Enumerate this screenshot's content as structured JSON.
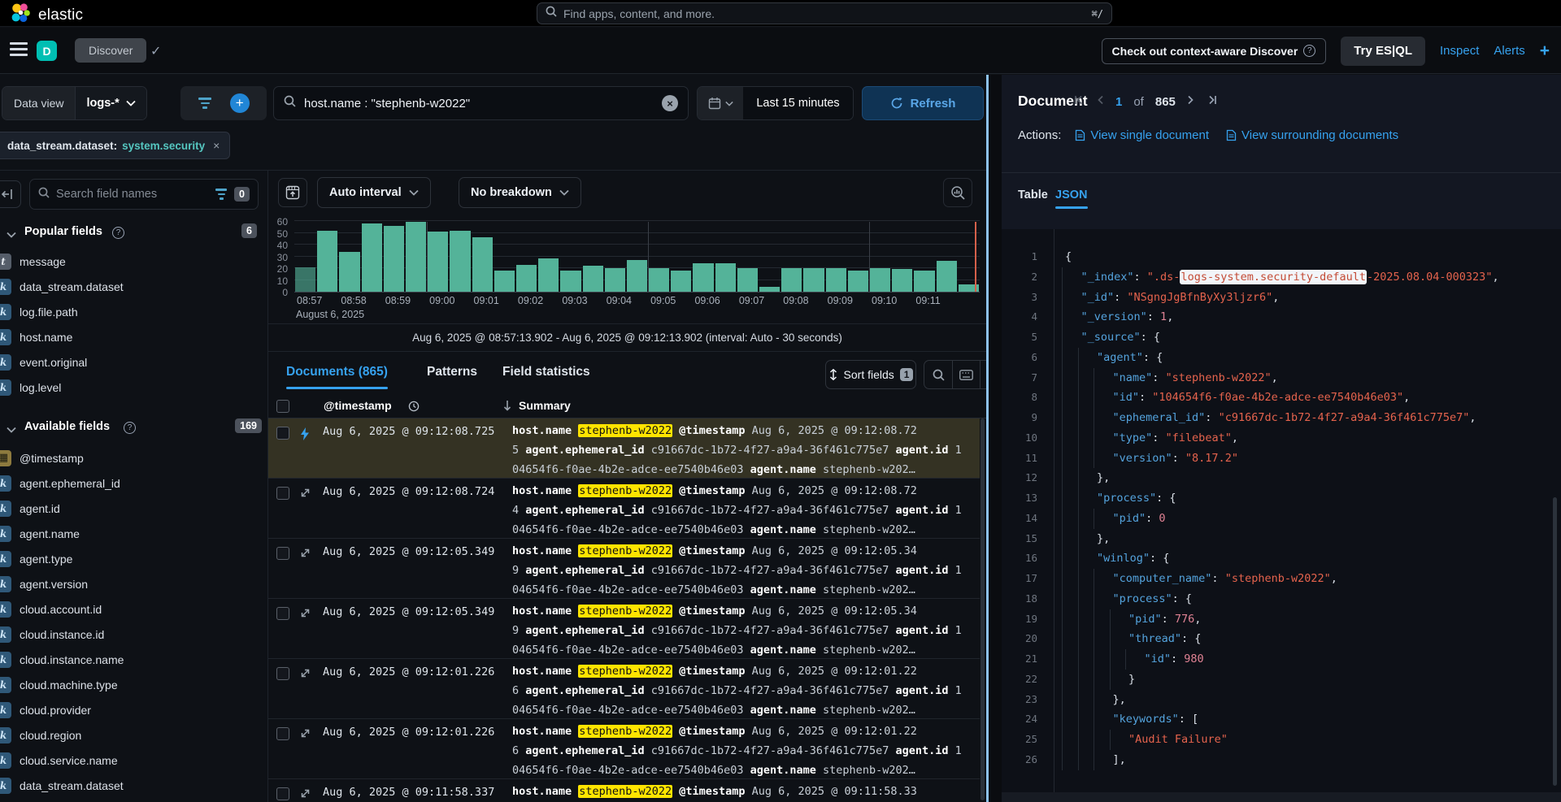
{
  "header": {
    "brand": "elastic",
    "search_placeholder": "Find apps, content, and more.",
    "shortcut": "⌘/"
  },
  "nav": {
    "space_initial": "D",
    "breadcrumb": "Discover",
    "banner": "Check out context-aware Discover",
    "try_esql": "Try ES|QL",
    "inspect": "Inspect",
    "alerts": "Alerts",
    "add": "+"
  },
  "query_bar": {
    "data_view_label": "Data view",
    "data_view_value": "logs-*",
    "query": "host.name : \"stephenb-w2022\"",
    "time_range": "Last 15 minutes",
    "refresh_label": "Refresh"
  },
  "filter_pill": {
    "field": "data_stream.dataset:",
    "value": "system.security",
    "close": "×"
  },
  "sidebar": {
    "search_placeholder": "Search field names",
    "filter_badge": "0",
    "popular": {
      "title": "Popular fields",
      "count": "6",
      "fields": [
        {
          "name": "message",
          "type": "t"
        },
        {
          "name": "data_stream.dataset",
          "type": "k"
        },
        {
          "name": "log.file.path",
          "type": "k"
        },
        {
          "name": "host.name",
          "type": "k"
        },
        {
          "name": "event.original",
          "type": "k"
        },
        {
          "name": "log.level",
          "type": "k"
        }
      ]
    },
    "available": {
      "title": "Available fields",
      "count": "169",
      "fields": [
        {
          "name": "@timestamp",
          "type": "date"
        },
        {
          "name": "agent.ephemeral_id",
          "type": "k"
        },
        {
          "name": "agent.id",
          "type": "k"
        },
        {
          "name": "agent.name",
          "type": "k"
        },
        {
          "name": "agent.type",
          "type": "k"
        },
        {
          "name": "agent.version",
          "type": "k"
        },
        {
          "name": "cloud.account.id",
          "type": "k"
        },
        {
          "name": "cloud.instance.id",
          "type": "k"
        },
        {
          "name": "cloud.instance.name",
          "type": "k"
        },
        {
          "name": "cloud.machine.type",
          "type": "k"
        },
        {
          "name": "cloud.provider",
          "type": "k"
        },
        {
          "name": "cloud.region",
          "type": "k"
        },
        {
          "name": "cloud.service.name",
          "type": "k"
        },
        {
          "name": "data_stream.dataset",
          "type": "k"
        }
      ]
    }
  },
  "chart": {
    "interval_label": "Auto interval",
    "breakdown_label": "No breakdown",
    "date_label": "August 6, 2025",
    "time_summary": "Aug 6, 2025 @ 08:57:13.902 - Aug 6, 2025 @ 09:12:13.902 (interval: Auto - 30 seconds)"
  },
  "chart_data": {
    "type": "bar",
    "x": [
      "08:57:00",
      "08:57:30",
      "08:58:00",
      "08:58:30",
      "08:59:00",
      "08:59:30",
      "09:00:00",
      "09:00:30",
      "09:01:00",
      "09:01:30",
      "09:02:00",
      "09:02:30",
      "09:03:00",
      "09:03:30",
      "09:04:00",
      "09:04:30",
      "09:05:00",
      "09:05:30",
      "09:06:00",
      "09:06:30",
      "09:07:00",
      "09:07:30",
      "09:08:00",
      "09:08:30",
      "09:09:00",
      "09:09:30",
      "09:10:00",
      "09:10:30",
      "09:11:00",
      "09:11:30",
      "09:12:00"
    ],
    "values": [
      21,
      52,
      34,
      58,
      56,
      59,
      51,
      52,
      46,
      18,
      23,
      28,
      18,
      22,
      20,
      27,
      20,
      18,
      24,
      24,
      20,
      4,
      20,
      20,
      20,
      18,
      20,
      19,
      18,
      26,
      6
    ],
    "x_tick_labels": [
      "08:57",
      "08:58",
      "08:59",
      "09:00",
      "09:01",
      "09:02",
      "09:03",
      "09:04",
      "09:05",
      "09:06",
      "09:07",
      "09:08",
      "09:09",
      "09:10",
      "09:11"
    ],
    "vgrid_tick_indices": [
      3,
      8,
      13
    ],
    "yticks": [
      0,
      10,
      20,
      30,
      40,
      50,
      60
    ],
    "ylim": [
      0,
      60
    ],
    "grid": true,
    "bar_color": "#54b399",
    "current_time_marker_color": "#d4604a",
    "title": "",
    "xlabel": "",
    "ylabel": ""
  },
  "results": {
    "tabs": [
      {
        "label": "Documents (865)",
        "active": true
      },
      {
        "label": "Patterns",
        "active": false
      },
      {
        "label": "Field statistics",
        "active": false
      }
    ],
    "sort_fields_label": "Sort fields",
    "sort_fields_count": "1"
  },
  "table": {
    "timestamp_col": "@timestamp",
    "summary_col": "Summary",
    "rows": [
      {
        "timestamp": "Aug 6, 2025 @ 09:12:08.725",
        "selected": true,
        "lines": [
          [
            [
              "b",
              "host.name"
            ],
            [
              "h",
              "stephenb-w2022"
            ],
            [
              "b",
              "@timestamp"
            ],
            [
              "r",
              "Aug 6, 2025 @ 09:12:08.72"
            ]
          ],
          [
            [
              "r",
              "5"
            ],
            [
              "b",
              "agent.ephemeral_id"
            ],
            [
              "r",
              "c91667dc-1b72-4f27-a9a4-36f461c775e7"
            ],
            [
              "b",
              "agent.id"
            ],
            [
              "r",
              "1"
            ]
          ],
          [
            [
              "r",
              "04654f6-f0ae-4b2e-adce-ee7540b46e03"
            ],
            [
              "b",
              "agent.name"
            ],
            [
              "r",
              "stephenb-w202…"
            ]
          ]
        ]
      },
      {
        "timestamp": "Aug 6, 2025 @ 09:12:08.724",
        "selected": false,
        "lines": [
          [
            [
              "b",
              "host.name"
            ],
            [
              "h",
              "stephenb-w2022"
            ],
            [
              "b",
              "@timestamp"
            ],
            [
              "r",
              "Aug 6, 2025 @ 09:12:08.72"
            ]
          ],
          [
            [
              "r",
              "4"
            ],
            [
              "b",
              "agent.ephemeral_id"
            ],
            [
              "r",
              "c91667dc-1b72-4f27-a9a4-36f461c775e7"
            ],
            [
              "b",
              "agent.id"
            ],
            [
              "r",
              "1"
            ]
          ],
          [
            [
              "r",
              "04654f6-f0ae-4b2e-adce-ee7540b46e03"
            ],
            [
              "b",
              "agent.name"
            ],
            [
              "r",
              "stephenb-w202…"
            ]
          ]
        ]
      },
      {
        "timestamp": "Aug 6, 2025 @ 09:12:05.349",
        "selected": false,
        "lines": [
          [
            [
              "b",
              "host.name"
            ],
            [
              "h",
              "stephenb-w2022"
            ],
            [
              "b",
              "@timestamp"
            ],
            [
              "r",
              "Aug 6, 2025 @ 09:12:05.34"
            ]
          ],
          [
            [
              "r",
              "9"
            ],
            [
              "b",
              "agent.ephemeral_id"
            ],
            [
              "r",
              "c91667dc-1b72-4f27-a9a4-36f461c775e7"
            ],
            [
              "b",
              "agent.id"
            ],
            [
              "r",
              "1"
            ]
          ],
          [
            [
              "r",
              "04654f6-f0ae-4b2e-adce-ee7540b46e03"
            ],
            [
              "b",
              "agent.name"
            ],
            [
              "r",
              "stephenb-w202…"
            ]
          ]
        ]
      },
      {
        "timestamp": "Aug 6, 2025 @ 09:12:05.349",
        "selected": false,
        "lines": [
          [
            [
              "b",
              "host.name"
            ],
            [
              "h",
              "stephenb-w2022"
            ],
            [
              "b",
              "@timestamp"
            ],
            [
              "r",
              "Aug 6, 2025 @ 09:12:05.34"
            ]
          ],
          [
            [
              "r",
              "9"
            ],
            [
              "b",
              "agent.ephemeral_id"
            ],
            [
              "r",
              "c91667dc-1b72-4f27-a9a4-36f461c775e7"
            ],
            [
              "b",
              "agent.id"
            ],
            [
              "r",
              "1"
            ]
          ],
          [
            [
              "r",
              "04654f6-f0ae-4b2e-adce-ee7540b46e03"
            ],
            [
              "b",
              "agent.name"
            ],
            [
              "r",
              "stephenb-w202…"
            ]
          ]
        ]
      },
      {
        "timestamp": "Aug 6, 2025 @ 09:12:01.226",
        "selected": false,
        "lines": [
          [
            [
              "b",
              "host.name"
            ],
            [
              "h",
              "stephenb-w2022"
            ],
            [
              "b",
              "@timestamp"
            ],
            [
              "r",
              "Aug 6, 2025 @ 09:12:01.22"
            ]
          ],
          [
            [
              "r",
              "6"
            ],
            [
              "b",
              "agent.ephemeral_id"
            ],
            [
              "r",
              "c91667dc-1b72-4f27-a9a4-36f461c775e7"
            ],
            [
              "b",
              "agent.id"
            ],
            [
              "r",
              "1"
            ]
          ],
          [
            [
              "r",
              "04654f6-f0ae-4b2e-adce-ee7540b46e03"
            ],
            [
              "b",
              "agent.name"
            ],
            [
              "r",
              "stephenb-w202…"
            ]
          ]
        ]
      },
      {
        "timestamp": "Aug 6, 2025 @ 09:12:01.226",
        "selected": false,
        "lines": [
          [
            [
              "b",
              "host.name"
            ],
            [
              "h",
              "stephenb-w2022"
            ],
            [
              "b",
              "@timestamp"
            ],
            [
              "r",
              "Aug 6, 2025 @ 09:12:01.22"
            ]
          ],
          [
            [
              "r",
              "6"
            ],
            [
              "b",
              "agent.ephemeral_id"
            ],
            [
              "r",
              "c91667dc-1b72-4f27-a9a4-36f461c775e7"
            ],
            [
              "b",
              "agent.id"
            ],
            [
              "r",
              "1"
            ]
          ],
          [
            [
              "r",
              "04654f6-f0ae-4b2e-adce-ee7540b46e03"
            ],
            [
              "b",
              "agent.name"
            ],
            [
              "r",
              "stephenb-w202…"
            ]
          ]
        ]
      },
      {
        "timestamp": "Aug 6, 2025 @ 09:11:58.337",
        "selected": false,
        "lines": [
          [
            [
              "b",
              "host.name"
            ],
            [
              "h",
              "stephenb-w2022"
            ],
            [
              "b",
              "@timestamp"
            ],
            [
              "r",
              "Aug 6, 2025 @ 09:11:58.33"
            ]
          ]
        ]
      }
    ]
  },
  "flyout": {
    "title": "Document",
    "page": "1",
    "of_label": "of",
    "total": "865",
    "actions_label": "Actions:",
    "view_single": "View single document",
    "view_surrounding": "View surrounding documents",
    "tabs": [
      {
        "label": "Table",
        "active": false
      },
      {
        "label": "JSON",
        "active": true
      }
    ],
    "json": {
      "lines": [
        {
          "n": 1,
          "indent": 0,
          "tokens": [
            [
              "p",
              "{"
            ]
          ]
        },
        {
          "n": 2,
          "indent": 1,
          "tokens": [
            [
              "k",
              "\"_index\""
            ],
            [
              "p",
              ": "
            ],
            [
              "s",
              "\".ds-"
            ],
            [
              "h",
              "logs-system.security-default"
            ],
            [
              "s",
              "-2025.08.04-000323\""
            ],
            [
              "p",
              ","
            ]
          ]
        },
        {
          "n": 3,
          "indent": 1,
          "tokens": [
            [
              "k",
              "\"_id\""
            ],
            [
              "p",
              ": "
            ],
            [
              "s",
              "\"NSgngJgBfnByXy3ljzr6\""
            ],
            [
              "p",
              ","
            ]
          ]
        },
        {
          "n": 4,
          "indent": 1,
          "tokens": [
            [
              "k",
              "\"_version\""
            ],
            [
              "p",
              ": "
            ],
            [
              "n",
              "1"
            ],
            [
              "p",
              ","
            ]
          ]
        },
        {
          "n": 5,
          "indent": 1,
          "tokens": [
            [
              "k",
              "\"_source\""
            ],
            [
              "p",
              ": {"
            ]
          ]
        },
        {
          "n": 6,
          "indent": 2,
          "tokens": [
            [
              "k",
              "\"agent\""
            ],
            [
              "p",
              ": {"
            ]
          ]
        },
        {
          "n": 7,
          "indent": 3,
          "tokens": [
            [
              "k",
              "\"name\""
            ],
            [
              "p",
              ": "
            ],
            [
              "s",
              "\"stephenb-w2022\""
            ],
            [
              "p",
              ","
            ]
          ]
        },
        {
          "n": 8,
          "indent": 3,
          "tokens": [
            [
              "k",
              "\"id\""
            ],
            [
              "p",
              ": "
            ],
            [
              "s",
              "\"104654f6-f0ae-4b2e-adce-ee7540b46e03\""
            ],
            [
              "p",
              ","
            ]
          ]
        },
        {
          "n": 9,
          "indent": 3,
          "tokens": [
            [
              "k",
              "\"ephemeral_id\""
            ],
            [
              "p",
              ": "
            ],
            [
              "s",
              "\"c91667dc-1b72-4f27-a9a4-36f461c775e7\""
            ],
            [
              "p",
              ","
            ]
          ]
        },
        {
          "n": 10,
          "indent": 3,
          "tokens": [
            [
              "k",
              "\"type\""
            ],
            [
              "p",
              ": "
            ],
            [
              "s",
              "\"filebeat\""
            ],
            [
              "p",
              ","
            ]
          ]
        },
        {
          "n": 11,
          "indent": 3,
          "tokens": [
            [
              "k",
              "\"version\""
            ],
            [
              "p",
              ": "
            ],
            [
              "s",
              "\"8.17.2\""
            ]
          ]
        },
        {
          "n": 12,
          "indent": 2,
          "tokens": [
            [
              "p",
              "},"
            ]
          ]
        },
        {
          "n": 13,
          "indent": 2,
          "tokens": [
            [
              "k",
              "\"process\""
            ],
            [
              "p",
              ": {"
            ]
          ]
        },
        {
          "n": 14,
          "indent": 3,
          "tokens": [
            [
              "k",
              "\"pid\""
            ],
            [
              "p",
              ": "
            ],
            [
              "n",
              "0"
            ]
          ]
        },
        {
          "n": 15,
          "indent": 2,
          "tokens": [
            [
              "p",
              "},"
            ]
          ]
        },
        {
          "n": 16,
          "indent": 2,
          "tokens": [
            [
              "k",
              "\"winlog\""
            ],
            [
              "p",
              ": {"
            ]
          ]
        },
        {
          "n": 17,
          "indent": 3,
          "tokens": [
            [
              "k",
              "\"computer_name\""
            ],
            [
              "p",
              ": "
            ],
            [
              "s",
              "\"stephenb-w2022\""
            ],
            [
              "p",
              ","
            ]
          ]
        },
        {
          "n": 18,
          "indent": 3,
          "tokens": [
            [
              "k",
              "\"process\""
            ],
            [
              "p",
              ": {"
            ]
          ]
        },
        {
          "n": 19,
          "indent": 4,
          "tokens": [
            [
              "k",
              "\"pid\""
            ],
            [
              "p",
              ": "
            ],
            [
              "n",
              "776"
            ],
            [
              "p",
              ","
            ]
          ]
        },
        {
          "n": 20,
          "indent": 4,
          "tokens": [
            [
              "k",
              "\"thread\""
            ],
            [
              "p",
              ": {"
            ]
          ]
        },
        {
          "n": 21,
          "indent": 5,
          "tokens": [
            [
              "k",
              "\"id\""
            ],
            [
              "p",
              ": "
            ],
            [
              "n",
              "980"
            ]
          ]
        },
        {
          "n": 22,
          "indent": 4,
          "tokens": [
            [
              "p",
              "}"
            ]
          ]
        },
        {
          "n": 23,
          "indent": 3,
          "tokens": [
            [
              "p",
              "},"
            ]
          ]
        },
        {
          "n": 24,
          "indent": 3,
          "tokens": [
            [
              "k",
              "\"keywords\""
            ],
            [
              "p",
              ": ["
            ]
          ]
        },
        {
          "n": 25,
          "indent": 4,
          "tokens": [
            [
              "s",
              "\"Audit Failure\""
            ]
          ]
        },
        {
          "n": 26,
          "indent": 3,
          "tokens": [
            [
              "p",
              "],"
            ]
          ]
        }
      ]
    }
  }
}
